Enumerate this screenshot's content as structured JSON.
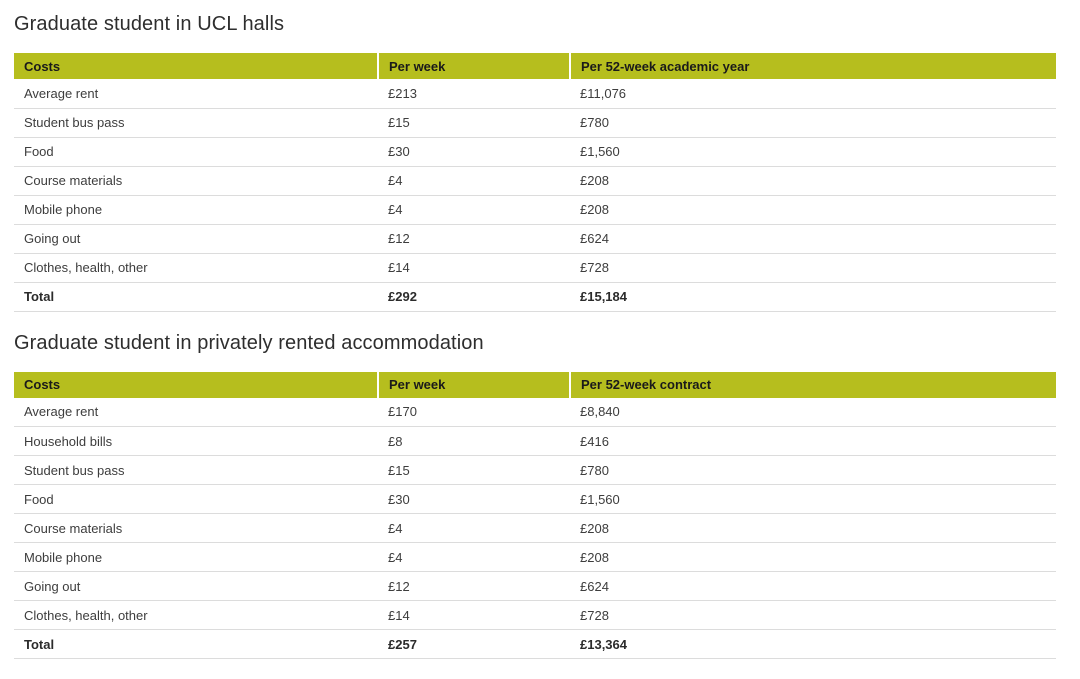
{
  "colors": {
    "header_bg": "#b6be1e",
    "header_text": "#1a1a1a",
    "body_text": "#3d3d3d",
    "title_text": "#2e2e2e",
    "row_border": "#dcdcdc",
    "page_bg": "#ffffff"
  },
  "tables": [
    {
      "title": "Graduate student in UCL halls",
      "columns": [
        "Costs",
        "Per week",
        "Per 52-week academic year"
      ],
      "rows": [
        [
          "Average rent",
          "£213",
          "£11,076"
        ],
        [
          "Student bus pass",
          "£15",
          "£780"
        ],
        [
          "Food",
          "£30",
          "£1,560"
        ],
        [
          "Course materials",
          "£4",
          "£208"
        ],
        [
          "Mobile phone",
          "£4",
          "£208"
        ],
        [
          "Going out",
          "£12",
          "£624"
        ],
        [
          "Clothes, health, other",
          "£14",
          "£728"
        ]
      ],
      "total_row": [
        "Total",
        "£292",
        "£15,184"
      ]
    },
    {
      "title": "Graduate student in privately rented accommodation",
      "columns": [
        "Costs",
        "Per week",
        "Per 52-week contract"
      ],
      "rows": [
        [
          "Average rent",
          "£170",
          "£8,840"
        ],
        [
          "Household bills",
          "£8",
          "£416"
        ],
        [
          "Student bus pass",
          "£15",
          "£780"
        ],
        [
          "Food",
          "£30",
          "£1,560"
        ],
        [
          "Course materials",
          "£4",
          "£208"
        ],
        [
          "Mobile phone",
          "£4",
          "£208"
        ],
        [
          "Going out",
          "£12",
          "£624"
        ],
        [
          "Clothes, health, other",
          "£14",
          "£728"
        ]
      ],
      "total_row": [
        "Total",
        "£257",
        "£13,364"
      ]
    }
  ]
}
